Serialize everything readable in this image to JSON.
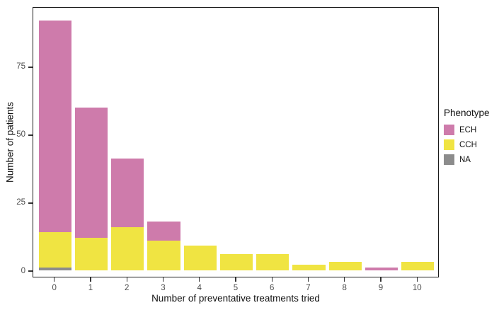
{
  "chart_data": {
    "type": "bar",
    "stacked": true,
    "title": "",
    "xlabel": "Number of preventative treatments tried",
    "ylabel": "Number of patients",
    "legend_title": "Phenotype",
    "legend_position": "right",
    "grid": false,
    "panel_background": "#FFFFFF",
    "panel_border_color": "#1A1A1A",
    "categories": [
      "0",
      "1",
      "2",
      "3",
      "4",
      "5",
      "6",
      "7",
      "8",
      "9",
      "10"
    ],
    "y_ticks": [
      0,
      25,
      50,
      75
    ],
    "ylim": [
      0,
      95
    ],
    "stack_order_bottom_to_top": [
      "NA",
      "CCH",
      "ECH"
    ],
    "series": [
      {
        "name": "ECH",
        "color": "#CE7BAB",
        "values": [
          78,
          48,
          25,
          7,
          0,
          0,
          0,
          0,
          0,
          1,
          0
        ]
      },
      {
        "name": "CCH",
        "color": "#F0E442",
        "values": [
          13,
          12,
          16,
          11,
          9,
          6,
          6,
          2,
          3,
          0,
          3
        ]
      },
      {
        "name": "NA",
        "color": "#8C8C8C",
        "values": [
          1,
          0,
          0,
          0,
          0,
          0,
          0,
          0,
          0,
          0,
          0
        ]
      }
    ],
    "totals": [
      92,
      60,
      41,
      18,
      9,
      6,
      6,
      2,
      3,
      1,
      3
    ]
  }
}
